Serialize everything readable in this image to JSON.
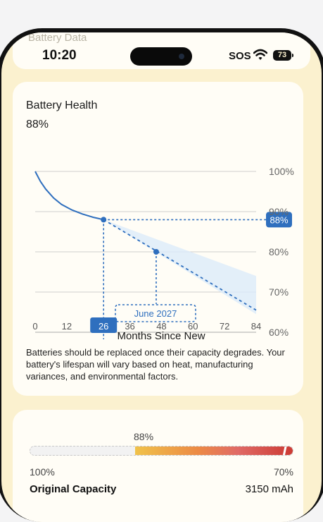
{
  "status_bar": {
    "time": "10:20",
    "carrier": "SOS",
    "battery_level": "73",
    "icons": [
      "wifi-icon",
      "battery-icon"
    ]
  },
  "header": {
    "faded_title": "Battery Data"
  },
  "health_card": {
    "title": "Battery Health",
    "value": "88%",
    "note": "Batteries should be replaced once their capacity degrades. Your battery's lifespan will vary based on heat, manufacturing variances, and environmental factors."
  },
  "chart_data": {
    "type": "line",
    "xlabel": "Months Since New",
    "ylabel": "",
    "x_ticks": [
      0,
      12,
      26,
      36,
      48,
      60,
      72,
      84
    ],
    "highlighted_x_tick": "26",
    "y_ticks": [
      "100%",
      "90%",
      "80%",
      "70%",
      "60%"
    ],
    "xlim": [
      0,
      84
    ],
    "ylim": [
      60,
      100
    ],
    "grid": true,
    "series": [
      {
        "kind": "measured",
        "points": [
          [
            0,
            100
          ],
          [
            2,
            97.5
          ],
          [
            4,
            95.6
          ],
          [
            7,
            93.4
          ],
          [
            10,
            91.8
          ],
          [
            14,
            90.4
          ],
          [
            18,
            89.4
          ],
          [
            22,
            88.6
          ],
          [
            26,
            88
          ]
        ]
      },
      {
        "kind": "projected",
        "points": [
          [
            26,
            88
          ],
          [
            84,
            65.5
          ]
        ]
      }
    ],
    "projection_band": {
      "x": [
        26,
        84
      ],
      "upper": [
        88,
        74
      ],
      "lower": [
        88,
        64.5
      ]
    },
    "current_point": {
      "x": 26,
      "y": 88,
      "label": "88%"
    },
    "milestone_point": {
      "x": 46,
      "y": 80,
      "label": "June 2027"
    }
  },
  "capacity_card": {
    "bar_percent_label": "88%",
    "bar_level": 0.88,
    "min_label": "100%",
    "max_label": "70%",
    "original_capacity_label": "Original Capacity",
    "original_capacity_value": "3150 mAh"
  },
  "colors": {
    "accent": "#2f6fbe",
    "band": "#dcebfa",
    "background": "#fbf1cf",
    "card": "#fffdf6"
  }
}
